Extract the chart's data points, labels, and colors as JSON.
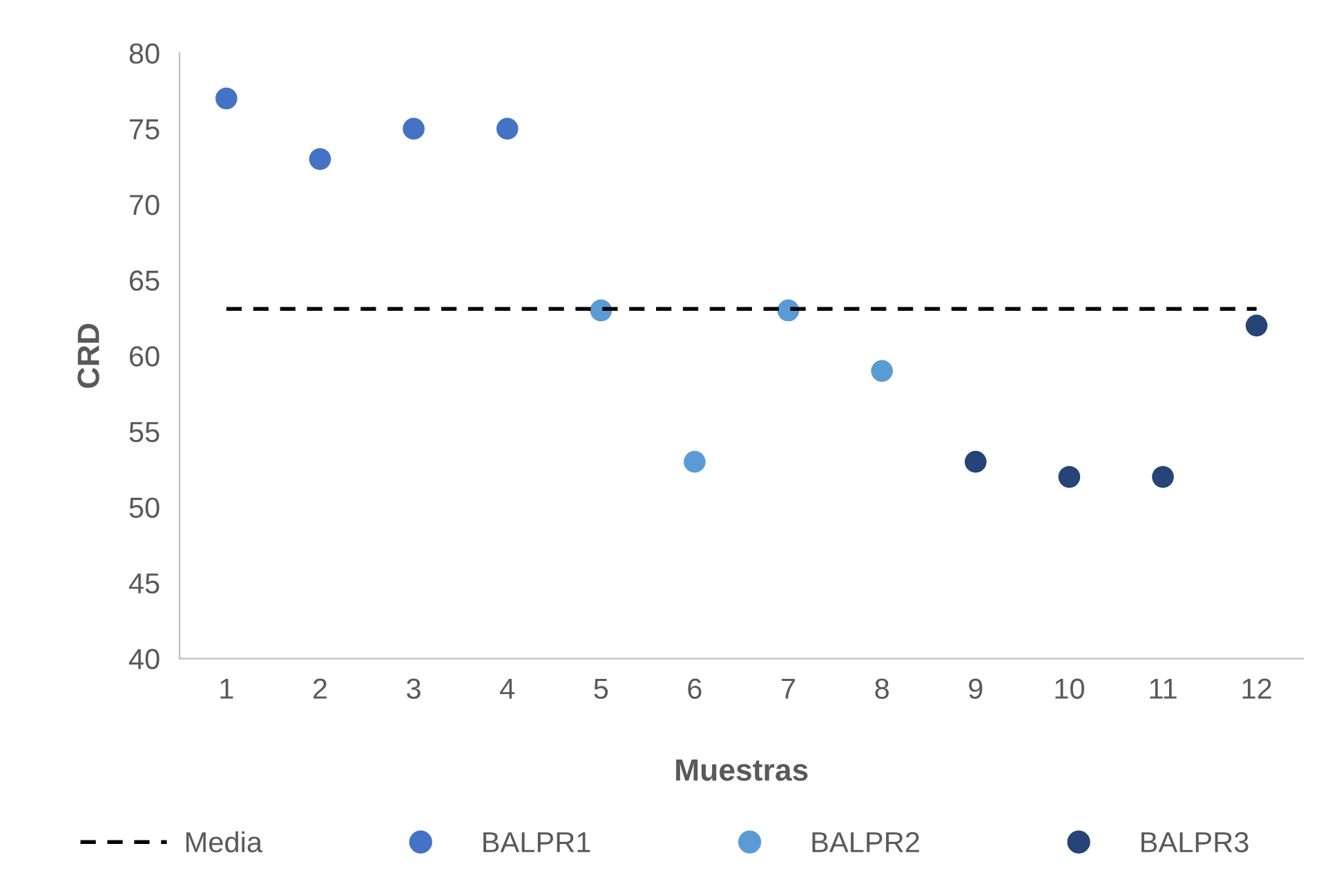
{
  "chart_data": {
    "type": "scatter",
    "xlabel": "Muestras",
    "ylabel": "CRD",
    "categories": [
      "1",
      "2",
      "3",
      "4",
      "5",
      "6",
      "7",
      "8",
      "9",
      "10",
      "11",
      "12"
    ],
    "series": [
      {
        "name": "Media",
        "type": "line",
        "color": "#000000",
        "line_style": "dashed",
        "marker": "none",
        "values": [
          63.1,
          63.1,
          63.1,
          63.1,
          63.1,
          63.1,
          63.1,
          63.1,
          63.1,
          63.1,
          63.1,
          63.1
        ]
      },
      {
        "name": "BALPR1",
        "color": "#4472c4",
        "marker": "circle",
        "values": [
          77,
          73,
          75,
          75,
          null,
          null,
          null,
          null,
          null,
          null,
          null,
          null
        ]
      },
      {
        "name": "BALPR2",
        "color": "#5b9bd5",
        "marker": "circle",
        "values": [
          null,
          null,
          null,
          null,
          63,
          53,
          63,
          59,
          null,
          null,
          null,
          null
        ]
      },
      {
        "name": "BALPR3",
        "color": "#264478",
        "marker": "circle",
        "values": [
          null,
          null,
          null,
          null,
          null,
          null,
          null,
          null,
          53,
          52,
          52,
          62
        ]
      }
    ],
    "ylim": [
      40,
      80
    ],
    "yticks": [
      40,
      45,
      50,
      55,
      60,
      65,
      70,
      75,
      80
    ],
    "grid": false,
    "legend": "bottom"
  }
}
